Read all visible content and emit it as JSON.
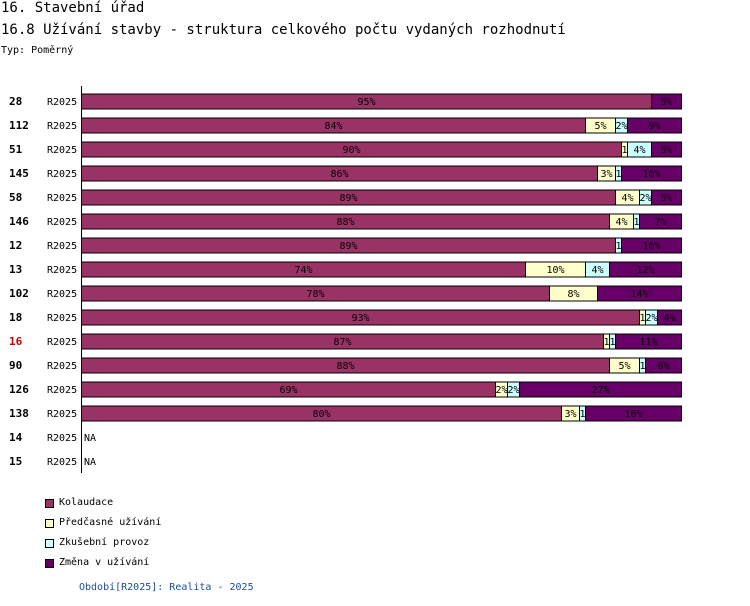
{
  "header": {
    "section_title": "16. Stavební úřad",
    "chart_title": "16.8 Užívání stavby - struktura celkového počtu vydaných rozhodnutí",
    "type_label": "Typ: Poměrný"
  },
  "footer": {
    "text": "Období[R2025]: Realita - 2025"
  },
  "chart_data": {
    "type": "bar",
    "orientation": "horizontal",
    "stacked": true,
    "percent": true,
    "title": "16.8 Užívání stavby - struktura celkového počtu vydaných rozhodnutí",
    "period": "R2025",
    "highlight_color": "#cc0000",
    "rows": [
      {
        "id": "28",
        "period": "R2025",
        "values": [
          95,
          0,
          0,
          5
        ],
        "labels": [
          "95%",
          "",
          "",
          "5%"
        ]
      },
      {
        "id": "112",
        "period": "R2025",
        "values": [
          84,
          5,
          2,
          9
        ],
        "labels": [
          "84%",
          "5%",
          "2%",
          "9%"
        ]
      },
      {
        "id": "51",
        "period": "R2025",
        "values": [
          90,
          1,
          4,
          5
        ],
        "labels": [
          "90%",
          "1",
          "4%",
          "5%"
        ]
      },
      {
        "id": "145",
        "period": "R2025",
        "values": [
          86,
          3,
          1,
          10
        ],
        "labels": [
          "86%",
          "3%",
          "1",
          "10%"
        ]
      },
      {
        "id": "58",
        "period": "R2025",
        "values": [
          89,
          4,
          2,
          5
        ],
        "labels": [
          "89%",
          "4%",
          "2%",
          "5%"
        ]
      },
      {
        "id": "146",
        "period": "R2025",
        "values": [
          88,
          4,
          1,
          7
        ],
        "labels": [
          "88%",
          "4%",
          "1",
          "7%"
        ]
      },
      {
        "id": "12",
        "period": "R2025",
        "values": [
          89,
          0,
          1,
          10
        ],
        "labels": [
          "89%",
          "",
          "1",
          "10%"
        ]
      },
      {
        "id": "13",
        "period": "R2025",
        "values": [
          74,
          10,
          4,
          12
        ],
        "labels": [
          "74%",
          "10%",
          "4%",
          "12%"
        ]
      },
      {
        "id": "102",
        "period": "R2025",
        "values": [
          78,
          8,
          0,
          14
        ],
        "labels": [
          "78%",
          "8%",
          "",
          "14%"
        ]
      },
      {
        "id": "18",
        "period": "R2025",
        "values": [
          93,
          1,
          2,
          4
        ],
        "labels": [
          "93%",
          "1",
          "2%",
          "4%"
        ]
      },
      {
        "id": "16",
        "period": "R2025",
        "values": [
          87,
          1,
          1,
          11
        ],
        "labels": [
          "87%",
          "1",
          "1",
          "11%"
        ],
        "highlight": true
      },
      {
        "id": "90",
        "period": "R2025",
        "values": [
          88,
          5,
          1,
          6
        ],
        "labels": [
          "88%",
          "5%",
          "1",
          "6%"
        ]
      },
      {
        "id": "126",
        "period": "R2025",
        "values": [
          69,
          2,
          2,
          27
        ],
        "labels": [
          "69%",
          "2%",
          "2%",
          "27%"
        ]
      },
      {
        "id": "138",
        "period": "R2025",
        "values": [
          80,
          3,
          1,
          16
        ],
        "labels": [
          "80%",
          "3%",
          "1",
          "16%"
        ]
      },
      {
        "id": "14",
        "period": "R2025",
        "values": null,
        "na_label": "NA"
      },
      {
        "id": "15",
        "period": "R2025",
        "values": null,
        "na_label": "NA"
      }
    ],
    "series": [
      {
        "name": "Kolaudace",
        "color": "#993366"
      },
      {
        "name": "Předčasné užívání",
        "color": "#ffffcc"
      },
      {
        "name": "Zkušební provoz",
        "color": "#ccffff"
      },
      {
        "name": "Změna v užívání",
        "color": "#660066"
      }
    ],
    "xlim": [
      0,
      100
    ]
  }
}
